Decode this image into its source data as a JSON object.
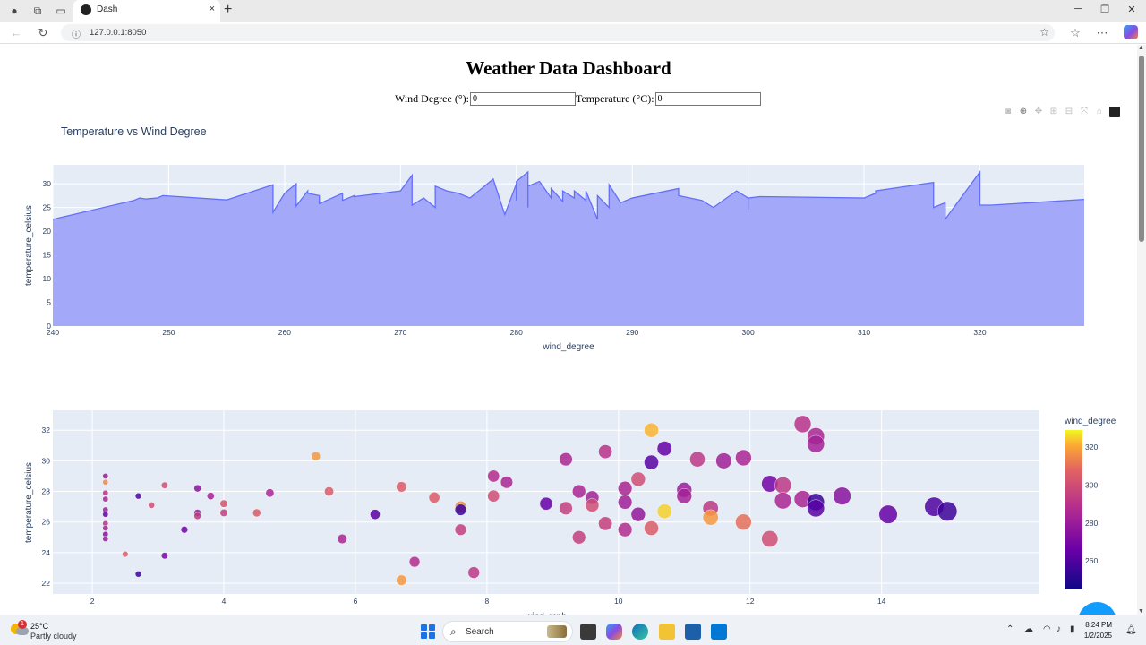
{
  "browser": {
    "tab_title": "Dash",
    "url": "127.0.0.1:8050",
    "tab_close": "×",
    "new_tab": "+"
  },
  "page": {
    "title": "Weather Data Dashboard",
    "wind_degree_label": "Wind Degree (°):",
    "wind_degree_value": "0",
    "temperature_label": "Temperature (°C):",
    "temperature_value": "0"
  },
  "chart_data": [
    {
      "type": "area",
      "title": "Temperature vs Wind Degree",
      "xlabel": "wind_degree",
      "ylabel": "temperature_celsius",
      "xlim": [
        240,
        329
      ],
      "ylim": [
        0,
        34
      ],
      "xticks": [
        240,
        250,
        260,
        270,
        280,
        290,
        300,
        310,
        320
      ],
      "yticks": [
        0,
        5,
        10,
        15,
        20,
        25,
        30
      ],
      "grid": true,
      "color": "#636efa",
      "fill_color": "#a3a9f8",
      "x": [
        240,
        247,
        247.5,
        248,
        249,
        249.5,
        255,
        259,
        259,
        260,
        261,
        261,
        262,
        262,
        263,
        263,
        265,
        265,
        266,
        266,
        270,
        271,
        271,
        272,
        273,
        273,
        274,
        275,
        276,
        277,
        278,
        279,
        280,
        280,
        280,
        281,
        281,
        281,
        282,
        283,
        283,
        284,
        284,
        285,
        285,
        286,
        286,
        287,
        287,
        288,
        288,
        289,
        290,
        294,
        294,
        296,
        297,
        299,
        300,
        300,
        300,
        301,
        310,
        311,
        311,
        316,
        316,
        317,
        317,
        320,
        320,
        321,
        329
      ],
      "y": [
        22.5,
        26.5,
        27.0,
        26.8,
        27.0,
        27.5,
        26.6,
        29.8,
        24.0,
        28.0,
        30.0,
        25.3,
        28.5,
        28.0,
        27.5,
        25.8,
        28.0,
        26.5,
        27.5,
        27.3,
        28.5,
        31.8,
        25.5,
        27.0,
        25.0,
        29.5,
        28.5,
        28.0,
        27.0,
        29.0,
        31.0,
        23.5,
        30.0,
        26.5,
        30.5,
        32.5,
        25.0,
        29.5,
        30.5,
        27.0,
        29.0,
        26.3,
        28.5,
        27.0,
        28.5,
        26.5,
        28.5,
        22.5,
        27.5,
        25.0,
        29.8,
        26.0,
        27.0,
        29.0,
        27.5,
        26.5,
        25.0,
        28.5,
        27.0,
        24.5,
        27.0,
        27.3,
        27.0,
        28.0,
        28.5,
        30.3,
        25.0,
        26.0,
        22.5,
        32.5,
        25.5,
        25.5,
        26.7
      ]
    },
    {
      "type": "scatter",
      "xlabel": "wind_mph",
      "ylabel": "temperature_celsius",
      "xlim": [
        1.4,
        16.4
      ],
      "ylim": [
        21.3,
        33.3
      ],
      "xticks": [
        2,
        4,
        6,
        8,
        10,
        12,
        14
      ],
      "yticks": [
        22,
        24,
        26,
        28,
        30,
        32
      ],
      "grid": true,
      "colorbar": {
        "title": "wind_degree",
        "ticks": [
          260,
          280,
          300,
          320
        ],
        "range": [
          245,
          329
        ]
      },
      "points": [
        {
          "x": 2.2,
          "y": 29.0,
          "c": 280
        },
        {
          "x": 2.2,
          "y": 28.6,
          "c": 315
        },
        {
          "x": 2.2,
          "y": 27.9,
          "c": 290
        },
        {
          "x": 2.2,
          "y": 27.5,
          "c": 285
        },
        {
          "x": 2.2,
          "y": 26.8,
          "c": 282
        },
        {
          "x": 2.2,
          "y": 26.5,
          "c": 265
        },
        {
          "x": 2.2,
          "y": 25.9,
          "c": 290
        },
        {
          "x": 2.2,
          "y": 25.6,
          "c": 285
        },
        {
          "x": 2.2,
          "y": 25.2,
          "c": 275
        },
        {
          "x": 2.2,
          "y": 24.9,
          "c": 280
        },
        {
          "x": 2.5,
          "y": 23.9,
          "c": 305
        },
        {
          "x": 2.7,
          "y": 27.7,
          "c": 260
        },
        {
          "x": 2.7,
          "y": 22.6,
          "c": 255
        },
        {
          "x": 2.9,
          "y": 27.1,
          "c": 300
        },
        {
          "x": 3.1,
          "y": 28.4,
          "c": 300
        },
        {
          "x": 3.1,
          "y": 23.8,
          "c": 270
        },
        {
          "x": 3.4,
          "y": 25.5,
          "c": 268
        },
        {
          "x": 3.6,
          "y": 28.2,
          "c": 275
        },
        {
          "x": 3.6,
          "y": 26.6,
          "c": 280
        },
        {
          "x": 3.6,
          "y": 26.4,
          "c": 292
        },
        {
          "x": 3.8,
          "y": 27.7,
          "c": 283
        },
        {
          "x": 4.0,
          "y": 27.2,
          "c": 302
        },
        {
          "x": 4.0,
          "y": 26.6,
          "c": 295
        },
        {
          "x": 4.5,
          "y": 26.6,
          "c": 305
        },
        {
          "x": 4.7,
          "y": 27.9,
          "c": 285
        },
        {
          "x": 5.4,
          "y": 30.3,
          "c": 318
        },
        {
          "x": 5.6,
          "y": 28.0,
          "c": 305
        },
        {
          "x": 5.8,
          "y": 24.9,
          "c": 285
        },
        {
          "x": 6.3,
          "y": 26.5,
          "c": 262
        },
        {
          "x": 6.7,
          "y": 28.3,
          "c": 305
        },
        {
          "x": 6.7,
          "y": 22.2,
          "c": 318
        },
        {
          "x": 6.9,
          "y": 23.4,
          "c": 288
        },
        {
          "x": 7.2,
          "y": 27.6,
          "c": 305
        },
        {
          "x": 7.6,
          "y": 27.0,
          "c": 315
        },
        {
          "x": 7.6,
          "y": 26.8,
          "c": 255
        },
        {
          "x": 7.6,
          "y": 25.5,
          "c": 295
        },
        {
          "x": 7.8,
          "y": 22.7,
          "c": 292
        },
        {
          "x": 8.1,
          "y": 29.0,
          "c": 288
        },
        {
          "x": 8.1,
          "y": 27.7,
          "c": 300
        },
        {
          "x": 8.3,
          "y": 28.6,
          "c": 285
        },
        {
          "x": 8.9,
          "y": 27.2,
          "c": 265
        },
        {
          "x": 9.2,
          "y": 30.1,
          "c": 285
        },
        {
          "x": 9.2,
          "y": 26.9,
          "c": 295
        },
        {
          "x": 9.4,
          "y": 28.0,
          "c": 285
        },
        {
          "x": 9.4,
          "y": 25.0,
          "c": 295
        },
        {
          "x": 9.6,
          "y": 27.6,
          "c": 283
        },
        {
          "x": 9.6,
          "y": 27.1,
          "c": 300
        },
        {
          "x": 9.8,
          "y": 30.6,
          "c": 290
        },
        {
          "x": 9.8,
          "y": 25.9,
          "c": 295
        },
        {
          "x": 10.1,
          "y": 28.2,
          "c": 285
        },
        {
          "x": 10.1,
          "y": 27.3,
          "c": 282
        },
        {
          "x": 10.1,
          "y": 25.5,
          "c": 288
        },
        {
          "x": 10.3,
          "y": 28.8,
          "c": 300
        },
        {
          "x": 10.3,
          "y": 26.5,
          "c": 278
        },
        {
          "x": 10.5,
          "y": 32.0,
          "c": 322
        },
        {
          "x": 10.5,
          "y": 29.9,
          "c": 262
        },
        {
          "x": 10.5,
          "y": 25.6,
          "c": 305
        },
        {
          "x": 10.7,
          "y": 30.8,
          "c": 265
        },
        {
          "x": 10.7,
          "y": 26.7,
          "c": 325
        },
        {
          "x": 11.0,
          "y": 28.1,
          "c": 280
        },
        {
          "x": 11.0,
          "y": 27.7,
          "c": 283
        },
        {
          "x": 11.2,
          "y": 30.1,
          "c": 292
        },
        {
          "x": 11.4,
          "y": 26.9,
          "c": 292
        },
        {
          "x": 11.4,
          "y": 26.3,
          "c": 318
        },
        {
          "x": 11.6,
          "y": 30.0,
          "c": 282
        },
        {
          "x": 11.9,
          "y": 30.2,
          "c": 285
        },
        {
          "x": 11.9,
          "y": 26.0,
          "c": 310
        },
        {
          "x": 12.3,
          "y": 28.5,
          "c": 268
        },
        {
          "x": 12.3,
          "y": 24.9,
          "c": 300
        },
        {
          "x": 12.5,
          "y": 28.4,
          "c": 292
        },
        {
          "x": 12.5,
          "y": 27.4,
          "c": 285
        },
        {
          "x": 12.8,
          "y": 32.4,
          "c": 290
        },
        {
          "x": 12.8,
          "y": 27.5,
          "c": 285
        },
        {
          "x": 13.0,
          "y": 31.6,
          "c": 285
        },
        {
          "x": 13.0,
          "y": 31.1,
          "c": 283
        },
        {
          "x": 13.0,
          "y": 27.3,
          "c": 255
        },
        {
          "x": 13.0,
          "y": 26.9,
          "c": 262
        },
        {
          "x": 13.4,
          "y": 27.7,
          "c": 275
        },
        {
          "x": 14.1,
          "y": 26.5,
          "c": 265
        },
        {
          "x": 14.8,
          "y": 27.0,
          "c": 260
        },
        {
          "x": 15.0,
          "y": 26.7,
          "c": 256
        }
      ]
    }
  ],
  "taskbar": {
    "temp": "25°C",
    "weather": "Partly cloudy",
    "search_label": "Search",
    "time": "8:24 PM",
    "date": "1/2/2025",
    "badge": "1"
  }
}
